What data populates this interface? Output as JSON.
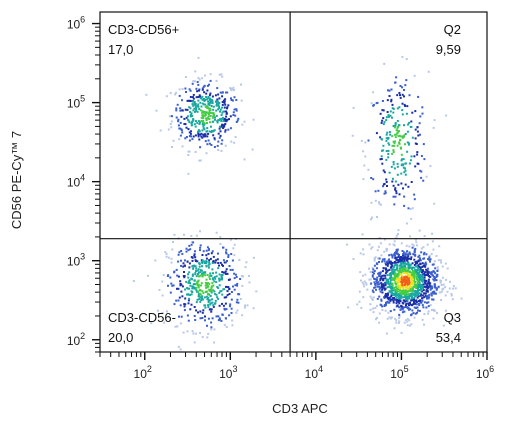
{
  "chart_data": {
    "type": "scatter",
    "subtype": "flow-cytometry-density-dot-plot",
    "xlabel": "CD3 APC",
    "ylabel": "CD56 PE-Cy™ 7",
    "x_scale": "log",
    "y_scale": "log",
    "xlim": [
      30,
      1000000
    ],
    "ylim": [
      70,
      1400000
    ],
    "x_ticks": [
      {
        "value": 100,
        "base": "10",
        "exp": "2"
      },
      {
        "value": 1000,
        "base": "10",
        "exp": "3"
      },
      {
        "value": 10000,
        "base": "10",
        "exp": "4"
      },
      {
        "value": 100000,
        "base": "10",
        "exp": "5"
      },
      {
        "value": 1000000,
        "base": "10",
        "exp": "6"
      }
    ],
    "y_ticks": [
      {
        "value": 100,
        "base": "10",
        "exp": "2"
      },
      {
        "value": 1000,
        "base": "10",
        "exp": "3"
      },
      {
        "value": 10000,
        "base": "10",
        "exp": "4"
      },
      {
        "value": 100000,
        "base": "10",
        "exp": "5"
      },
      {
        "value": 1000000,
        "base": "10",
        "exp": "6"
      }
    ],
    "quadrant_gates": {
      "x_divider": 5000,
      "y_divider": 1900
    },
    "quadrants": [
      {
        "id": "upper-left",
        "label": "CD3-CD56+",
        "value": "17,0"
      },
      {
        "id": "upper-right",
        "label": "Q2",
        "value": "9,59"
      },
      {
        "id": "lower-left",
        "label": "CD3-CD56-",
        "value": "20,0"
      },
      {
        "id": "lower-right",
        "label": "Q3",
        "value": "53,4"
      }
    ],
    "populations": [
      {
        "name": "CD3-CD56+",
        "center": [
          520,
          70000
        ],
        "spread_log": [
          0.2,
          0.22
        ],
        "weight": 17.0
      },
      {
        "name": "CD3+CD56+",
        "center": [
          90000,
          30000
        ],
        "spread_log": [
          0.18,
          0.45
        ],
        "weight": 9.59
      },
      {
        "name": "CD3-CD56-",
        "center": [
          500,
          500
        ],
        "spread_log": [
          0.22,
          0.28
        ],
        "weight": 20.0
      },
      {
        "name": "CD3+CD56-",
        "center": [
          110000,
          550
        ],
        "spread_log": [
          0.2,
          0.22
        ],
        "weight": 53.4
      }
    ],
    "density_colors": [
      "#b8c8e8",
      "#3a5fd0",
      "#1a2ea8",
      "#18a8a0",
      "#44cc44",
      "#f0e020",
      "#f06018"
    ],
    "grid": false
  }
}
